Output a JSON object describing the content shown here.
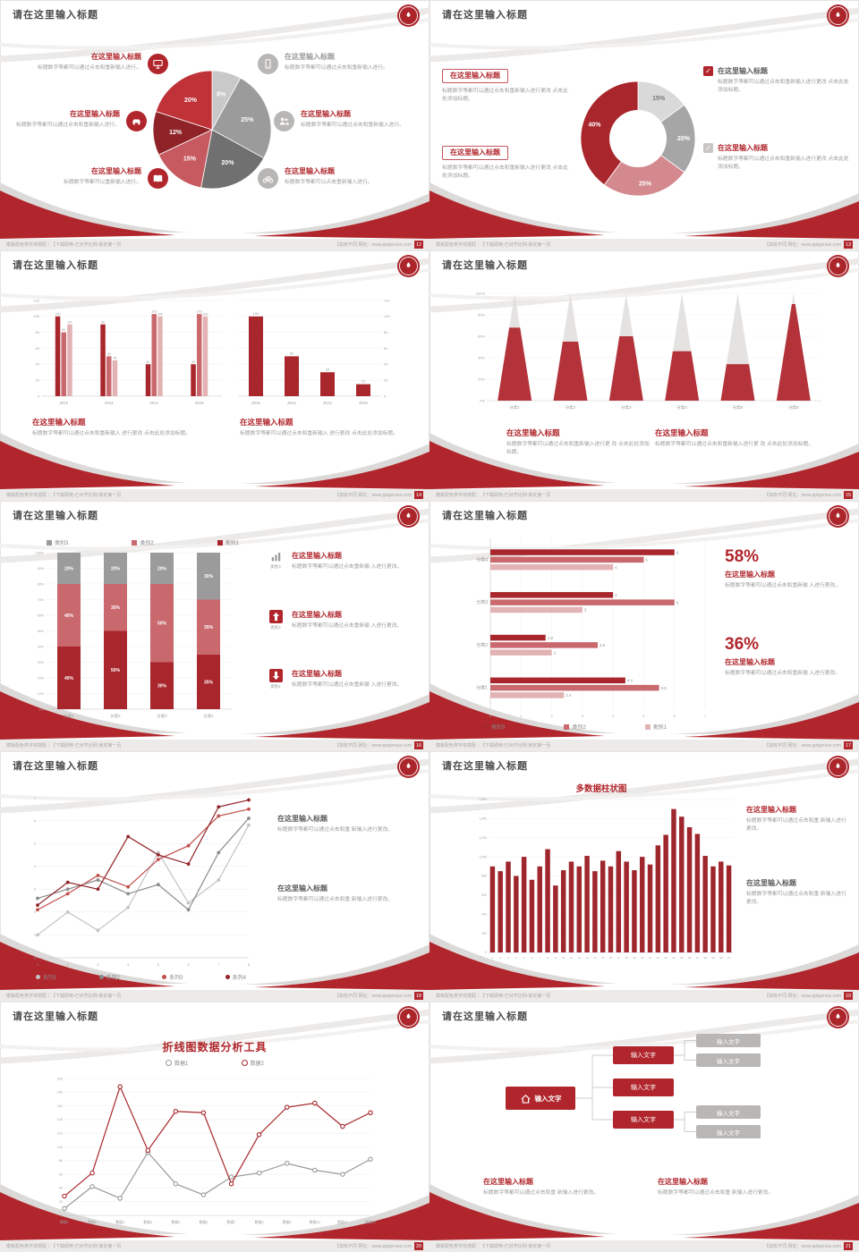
{
  "common": {
    "slide_title": "请在这里输入标题",
    "footer_left": "模板配色类字体搭配｜【下载即用-已对齐比例-锁定第一页",
    "footer_right": "【如有不同 网址：www.pptgenius.com",
    "check_glyph": "✓",
    "accent_red": "#b0262c"
  },
  "slides": [
    {
      "page": "12",
      "left_callouts": [
        {
          "icon": "monitor-icon",
          "title": "在这里输入标题",
          "body": "标题数字等都可以通过点击和重新输入进行。"
        },
        {
          "icon": "car-icon",
          "title": "在这里输入标题",
          "body": "标题数字等都可以通过点击和重新输入进行。"
        },
        {
          "icon": "book-icon",
          "title": "在这里输入标题",
          "body": "标题数字等都可以重新输入进行。"
        }
      ],
      "right_callouts": [
        {
          "icon": "phone-icon",
          "title": "在这里输入标题",
          "body": "标题数字等都可以通过点击和重新输入进行。"
        },
        {
          "icon": "people-icon",
          "title": "在这里输入标题",
          "body": "标题数字等都可以通过点击和重新输入进行。"
        },
        {
          "icon": "bike-icon",
          "title": "在这里输入标题",
          "body": "标题数字等都可以点击重新输入进行。"
        }
      ]
    },
    {
      "page": "13",
      "left_callouts": [
        {
          "title": "在这里输入标题",
          "body": "标题数字等都可以通过点击和重新输入进行更改 点击此处添加标题。"
        },
        {
          "title": "在这里输入标题",
          "body": "标题数字等都可以通过点击和重新输入进行更改 点击此处添加标题。"
        }
      ],
      "right_callouts": [
        {
          "title": "在这里输入标题",
          "body": "标题数字等都可以通过点击和重新输入进行更改 点击此处添加标题。"
        },
        {
          "title": "在这里输入标题",
          "body": "标题数字等都可以通过点击和重新输入进行更改 点击此处添加标题。"
        }
      ]
    },
    {
      "page": "14",
      "blocks": [
        {
          "title": "在这里输入标题",
          "body": "标题数字等都可以通过点击和重新输入 进行更改 点击此处添加标题。"
        },
        {
          "title": "在这里输入标题",
          "body": "标题数字等都可以通过点击和重新输入 进行更改 点击此处添加标题。"
        }
      ]
    },
    {
      "page": "15",
      "blocks": [
        {
          "title": "在这里输入标题",
          "body": "标题数字等都可以通过点击和重新输入进行更 改 点击此处添加标题。"
        },
        {
          "title": "在这里输入标题",
          "body": "标题数字等都可以通过点击和重新输入进行更 改 点击此处添加标题。"
        }
      ]
    },
    {
      "page": "16",
      "legend": [
        {
          "label": "类别3",
          "color": "#9b9b9b"
        },
        {
          "label": "类别2",
          "color": "#c9686d"
        },
        {
          "label": "类别1",
          "color": "#a8262c"
        }
      ],
      "items": [
        {
          "icon": "bar-chart-icon",
          "caption": "类别3",
          "title": "在这里输入标题",
          "body": "标题数字等都可以通过点击重新输 入进行更改。"
        },
        {
          "icon": "arrow-up-icon",
          "caption": "类别2",
          "title": "在这里输入标题",
          "body": "标题数字等都可以通过点击重新输 入进行更改。"
        },
        {
          "icon": "arrow-down-icon",
          "caption": "类别1",
          "title": "在这里输入标题",
          "body": "标题数字等都可以通过点击重新输 入进行更改。"
        }
      ]
    },
    {
      "page": "17",
      "legend": [
        {
          "label": "类别3",
          "color": "#a8262c"
        },
        {
          "label": "类别2",
          "color": "#c9686d"
        },
        {
          "label": "类别1",
          "color": "#e2b2b4"
        }
      ],
      "stats": [
        {
          "value": "58%",
          "title": "在这里输入标题",
          "body": "标题数字等都可以通过点击和重新输 入进行更改。"
        },
        {
          "value": "36%",
          "title": "在这里输入标题",
          "body": "标题数字等都可以通过点击和重新输 入进行更改。"
        }
      ]
    },
    {
      "page": "18",
      "legend": [
        {
          "label": "系列1",
          "color": "#c3c3c3"
        },
        {
          "label": "系列2",
          "color": "#8a8a8a"
        },
        {
          "label": "系列3",
          "color": "#c0504d"
        },
        {
          "label": "系列4",
          "color": "#8f2328"
        }
      ],
      "blocks": [
        {
          "title": "在这里输入标题",
          "body": "标题数字等都可以通过点击和重 新输入进行更改。"
        },
        {
          "title": "在这里输入标题",
          "body": "标题数字等都可以通过点击和重 新输入进行更改。"
        }
      ]
    },
    {
      "page": "19",
      "chart_title": "多数据柱状图",
      "blocks": [
        {
          "title": "在这里输入标题",
          "body": "标题数字等都可以通过点击和重 新输入进行更改。"
        },
        {
          "title": "在这里输入标题",
          "body": "标题数字等都可以通过点击和重 新输入进行更改。"
        }
      ]
    },
    {
      "page": "20",
      "chart_title": "折线图数据分析工具",
      "legend": [
        {
          "label": "数据1",
          "color": "#9a9a9a"
        },
        {
          "label": "数据2",
          "color": "#a8262c"
        }
      ]
    },
    {
      "page": "21",
      "diagram": {
        "root": "输入文字",
        "mid": [
          "输入文字",
          "输入文字",
          "输入文字"
        ],
        "leaf": [
          "输入文字",
          "输入文字",
          "输入文字",
          "输入文字"
        ]
      },
      "blocks": [
        {
          "title": "在这里输入标题",
          "body": "标题数字等都可以通过点击和重 新输入进行更改。"
        },
        {
          "title": "在这里输入标题",
          "body": "标题数字等都可以通过点击和重 新输入进行更改。"
        }
      ]
    }
  ],
  "chart_data": {
    "pie12": {
      "type": "pie",
      "labels": [
        "8%",
        "25%",
        "20%",
        "15%",
        "12%",
        "20%"
      ],
      "values": [
        8,
        25,
        20,
        15,
        12,
        20
      ],
      "colors": [
        "#c9c9c9",
        "#9b9b9b",
        "#707070",
        "#c65a60",
        "#8f2328",
        "#bf3238"
      ]
    },
    "donut13": {
      "type": "donut",
      "labels": [
        "15%",
        "20%",
        "25%",
        "40%"
      ],
      "values": [
        15,
        20,
        25,
        40
      ],
      "colors": [
        "#d9d9d9",
        "#a6a6a6",
        "#d4898e",
        "#a8262c"
      ],
      "label_colors": [
        "#777777",
        "#ffffff",
        "#ffffff",
        "#ffffff"
      ]
    },
    "gbars14": {
      "type": "grouped-bars",
      "categories": [
        "2010",
        "2012",
        "2014",
        "2016"
      ],
      "colors": [
        "#a8262c",
        "#c9686d",
        "#e2b2b4"
      ],
      "series": [
        [
          100,
          90,
          40,
          40
        ],
        [
          80,
          50,
          103,
          103
        ],
        [
          90,
          45,
          100,
          100
        ]
      ],
      "ymax": 120,
      "ystep": 20
    },
    "bars14": {
      "type": "bars",
      "categories": [
        "2016",
        "2014",
        "2012",
        "2010"
      ],
      "values": [
        100,
        50,
        30,
        15
      ],
      "color": "#a8262c",
      "ymax": 120,
      "ystep": 20
    },
    "cones15": {
      "type": "cones",
      "categories": [
        "分类1",
        "分类2",
        "分类3",
        "分类4",
        "分类5",
        "分类6"
      ],
      "values": [
        68,
        55,
        60,
        46,
        34,
        90
      ],
      "ymax": 100,
      "ystep": 20,
      "color": "#b4333a",
      "rest_color": "#e0dedd"
    },
    "stacked16": {
      "type": "stacked100",
      "categories": [
        "分类1",
        "分类2",
        "分类3",
        "分类4"
      ],
      "ystep": 10,
      "series": [
        {
          "name": "类别1",
          "color": "#a8262c",
          "values": [
            40,
            50,
            30,
            35
          ]
        },
        {
          "name": "类别2",
          "color": "#c9686d",
          "values": [
            40,
            30,
            50,
            35
          ]
        },
        {
          "name": "类别3",
          "color": "#9b9b9b",
          "values": [
            20,
            20,
            20,
            30
          ]
        }
      ]
    },
    "hbars17": {
      "type": "hb ars17-placeholder-unused",
      "note": "see hbars key below"
    },
    "hbars": {
      "type": "hbars",
      "categories": [
        "分类4",
        "分类3",
        "分类2",
        "分类1"
      ],
      "xmax": 7,
      "series": [
        {
          "name": "类别3",
          "color": "#a8262c",
          "values": [
            6,
            4,
            1.8,
            4.4
          ]
        },
        {
          "name": "类别2",
          "color": "#c9686d",
          "values": [
            5,
            6,
            3.5,
            5.5
          ]
        },
        {
          "name": "类别1",
          "color": "#e2b2b4",
          "values": [
            4,
            3,
            2,
            2.4
          ]
        }
      ]
    },
    "lines18": {
      "type": "lines",
      "x": [
        "1",
        "2",
        "3",
        "4",
        "5",
        "6",
        "7",
        "8"
      ],
      "ymax": 7,
      "ystep": 1,
      "markers": "solid",
      "series": [
        {
          "name": "系列1",
          "color": "#c3c3c3",
          "values": [
            1,
            2,
            1.2,
            2.2,
            4.6,
            2.4,
            3.4,
            5.8
          ]
        },
        {
          "name": "系列2",
          "color": "#8a8a8a",
          "values": [
            2.6,
            3,
            3.4,
            2.8,
            3.2,
            2.1,
            4.6,
            6.1
          ]
        },
        {
          "name": "系列3",
          "color": "#c0504d",
          "values": [
            2.1,
            2.8,
            3.6,
            3.1,
            4.3,
            4.9,
            6.2,
            6.5
          ]
        },
        {
          "name": "系列4",
          "color": "#8f2328",
          "values": [
            2.3,
            3.3,
            3,
            5.3,
            4.5,
            4.1,
            6.6,
            6.9
          ]
        }
      ]
    },
    "cols19": {
      "type": "columns",
      "ymax": 1600,
      "ystep": 200,
      "color": "#9e262c",
      "values": [
        900,
        850,
        950,
        800,
        1000,
        760,
        900,
        1080,
        700,
        860,
        950,
        900,
        1010,
        850,
        960,
        900,
        1060,
        950,
        860,
        1000,
        920,
        1120,
        1230,
        1500,
        1420,
        1310,
        1240,
        1010,
        900,
        950,
        910
      ]
    },
    "lines20": {
      "type": "lines",
      "x": [
        "数据1",
        "数据2",
        "数据3",
        "数据4",
        "数据5",
        "数据6",
        "数据7",
        "数据8",
        "数据9",
        "数据10",
        "数据11",
        "数据12"
      ],
      "ymax": 200,
      "ystep": 20,
      "markers": "hollow",
      "series": [
        {
          "name": "数据1",
          "color": "#9a9a9a",
          "values": [
            10,
            42,
            25,
            92,
            46,
            30,
            56,
            62,
            76,
            66,
            60,
            82
          ]
        },
        {
          "name": "数据2",
          "color": "#a8262c",
          "values": [
            28,
            62,
            188,
            95,
            152,
            150,
            46,
            118,
            158,
            164,
            130,
            150
          ]
        }
      ]
    }
  }
}
